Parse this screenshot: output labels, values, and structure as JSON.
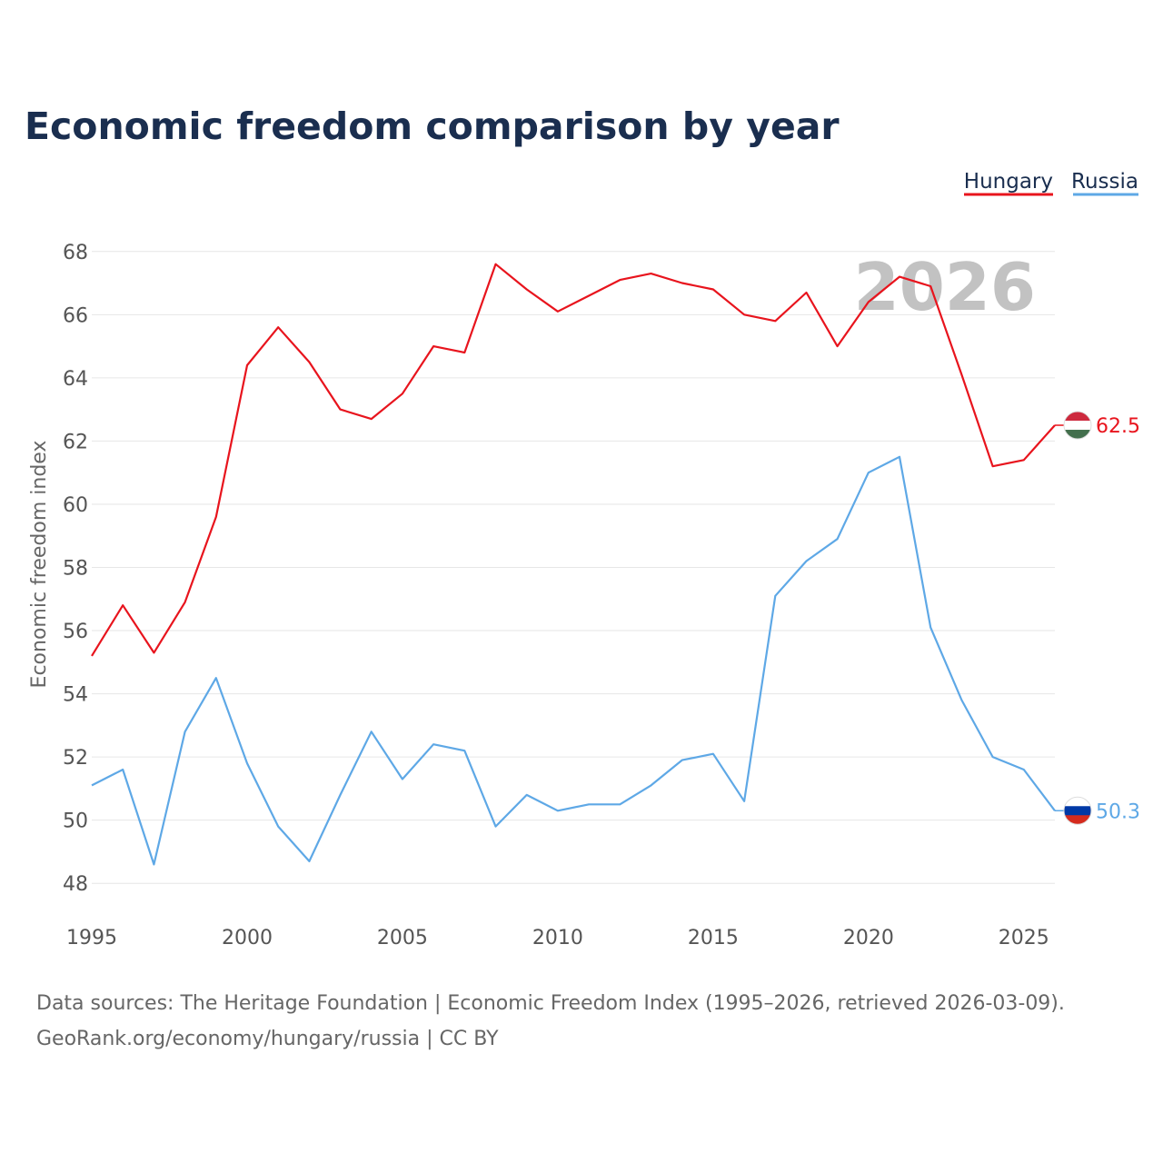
{
  "chart_data": {
    "type": "line",
    "title": "Economic freedom comparison by year",
    "ylabel": "Economic freedom index",
    "xlabel": "",
    "highlight_year": "2026",
    "x": [
      1995,
      1996,
      1997,
      1998,
      1999,
      2000,
      2001,
      2002,
      2003,
      2004,
      2005,
      2006,
      2007,
      2008,
      2009,
      2010,
      2011,
      2012,
      2013,
      2014,
      2015,
      2016,
      2017,
      2018,
      2019,
      2020,
      2021,
      2022,
      2023,
      2024,
      2025,
      2026
    ],
    "xlim": [
      1995,
      2026
    ],
    "ylim": [
      47,
      69
    ],
    "x_ticks": [
      1995,
      2000,
      2005,
      2010,
      2015,
      2020,
      2025
    ],
    "y_ticks": [
      48,
      50,
      52,
      54,
      56,
      58,
      60,
      62,
      64,
      66,
      68
    ],
    "grid": true,
    "legend_position": "top-right",
    "series": [
      {
        "name": "Hungary",
        "color": "#e8141d",
        "flag": "hungary-flag",
        "end_label": "62.5",
        "values": [
          55.2,
          56.8,
          55.3,
          56.9,
          59.6,
          64.4,
          65.6,
          64.5,
          63.0,
          62.7,
          63.5,
          65.0,
          64.8,
          67.6,
          66.8,
          66.1,
          66.6,
          67.1,
          67.3,
          67.0,
          66.8,
          66.0,
          65.8,
          66.7,
          65.0,
          66.4,
          67.2,
          66.9,
          64.1,
          61.2,
          61.4,
          62.5
        ]
      },
      {
        "name": "Russia",
        "color": "#5ea8e6",
        "flag": "russia-flag",
        "end_label": "50.3",
        "values": [
          51.1,
          51.6,
          48.6,
          52.8,
          54.5,
          51.8,
          49.8,
          48.7,
          50.8,
          52.8,
          51.3,
          52.4,
          52.2,
          49.8,
          50.8,
          50.3,
          50.5,
          50.5,
          51.1,
          51.9,
          52.1,
          50.6,
          57.1,
          58.2,
          58.9,
          61.0,
          61.5,
          56.1,
          53.8,
          52.0,
          51.6,
          50.3
        ]
      }
    ]
  },
  "source": {
    "line1": "Data sources: The Heritage Foundation | Economic Freedom Index (1995–2026, retrieved 2026-03-09).",
    "line2": "GeoRank.org/economy/hungary/russia | CC BY"
  }
}
